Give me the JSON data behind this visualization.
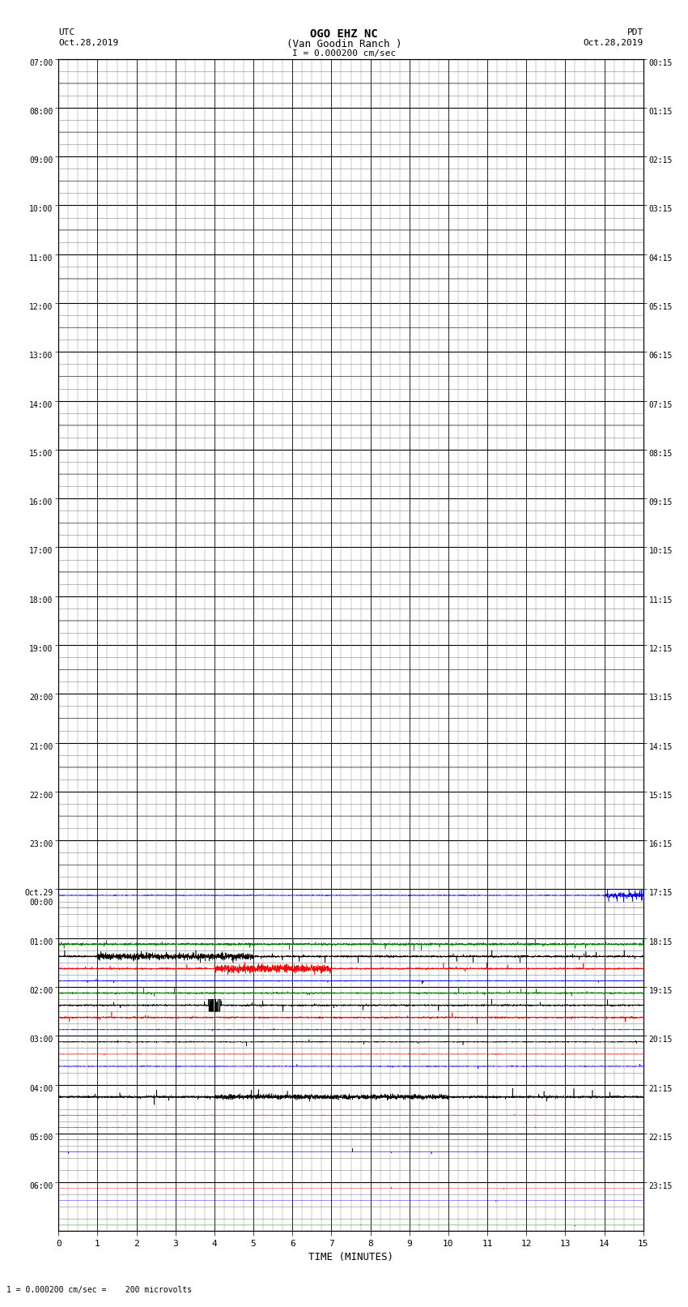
{
  "title_line1": "OGO EHZ NC",
  "title_line2": "(Van Goodin Ranch )",
  "title_line3": "I = 0.000200 cm/sec",
  "left_top_label1": "UTC",
  "left_top_label2": "Oct.28,2019",
  "right_top_label1": "PDT",
  "right_top_label2": "Oct.28,2019",
  "bottom_label": "TIME (MINUTES)",
  "bottom_note": "1 = 0.000200 cm/sec =    200 microvolts",
  "xlim": [
    0,
    15
  ],
  "xticks": [
    0,
    1,
    2,
    3,
    4,
    5,
    6,
    7,
    8,
    9,
    10,
    11,
    12,
    13,
    14,
    15
  ],
  "left_hour_labels": [
    "07:00",
    "08:00",
    "09:00",
    "10:00",
    "11:00",
    "12:00",
    "13:00",
    "14:00",
    "15:00",
    "16:00",
    "17:00",
    "18:00",
    "19:00",
    "20:00",
    "21:00",
    "22:00",
    "23:00",
    "Oct.29\n00:00",
    "01:00",
    "02:00",
    "03:00",
    "04:00",
    "05:00",
    "06:00"
  ],
  "right_hour_labels": [
    "00:15",
    "01:15",
    "02:15",
    "03:15",
    "04:15",
    "05:15",
    "06:15",
    "07:15",
    "08:15",
    "09:15",
    "10:15",
    "11:15",
    "12:15",
    "13:15",
    "14:15",
    "15:15",
    "16:15",
    "17:15",
    "18:15",
    "19:15",
    "20:15",
    "21:15",
    "22:15",
    "23:15"
  ],
  "n_hours": 24,
  "subrows_per_hour": 4,
  "bg_color": "#ffffff",
  "major_grid_color": "#000000",
  "minor_grid_color": "#aaaaaa"
}
